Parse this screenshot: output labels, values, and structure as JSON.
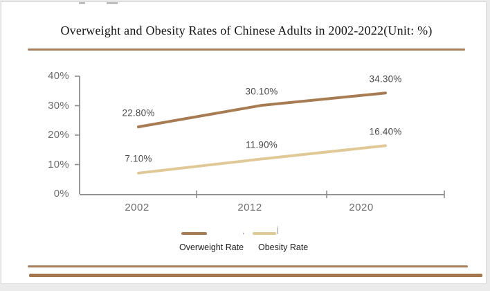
{
  "title": "Overweight and Obesity Rates of Chinese Adults in 2002-2022(Unit: %)",
  "chart_data": {
    "type": "line",
    "title": "Overweight and Obesity Rates of Chinese Adults in 2002-2022",
    "unit": "%",
    "categories": [
      "2002",
      "2012",
      "2020"
    ],
    "series": [
      {
        "name": "Overweight Rate",
        "values": [
          22.8,
          30.1,
          34.3
        ],
        "labels": [
          "22.80%",
          "30.10%",
          "34.30%"
        ],
        "color": "#a87c52"
      },
      {
        "name": "Obesity Rate",
        "values": [
          7.1,
          11.9,
          16.4
        ],
        "labels": [
          "7.10%",
          "11.90%",
          "16.40%"
        ],
        "color": "#e0c996"
      }
    ],
    "ylim": [
      0,
      40
    ],
    "yticks": [
      "0%",
      "10%",
      "20%",
      "30%",
      "40%"
    ],
    "grid": false,
    "legend_position": "bottom"
  },
  "legend": {
    "artifact_comma": ",",
    "artifact_j": "j"
  },
  "colors": {
    "accent_rule": "#a87e5c",
    "accent_rule_thick": "#a3764e",
    "axis": "#8c8c8c",
    "tick_label": "#6b6b6b",
    "data_label": "#4a4a4a",
    "card_border": "#d8d8d8"
  }
}
